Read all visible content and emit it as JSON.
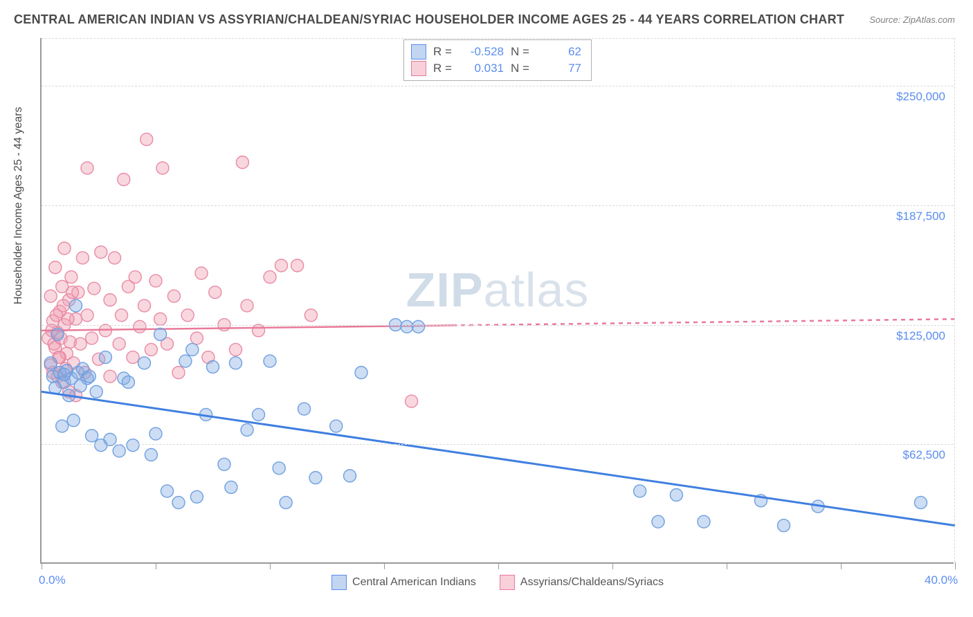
{
  "header": {
    "title": "CENTRAL AMERICAN INDIAN VS ASSYRIAN/CHALDEAN/SYRIAC HOUSEHOLDER INCOME AGES 25 - 44 YEARS CORRELATION CHART",
    "source_label": "Source:",
    "source_value": "ZipAtlas.com"
  },
  "watermark": {
    "zip": "ZIP",
    "atlas": "atlas"
  },
  "chart": {
    "type": "scatter",
    "x_axis": {
      "min": 0,
      "max": 40,
      "unit": "%",
      "ticks": [
        0,
        5,
        10,
        15,
        20,
        25,
        30,
        35,
        40
      ],
      "visible_labels": {
        "0": "0.0%",
        "40": "40.0%"
      }
    },
    "y_axis": {
      "label": "Householder Income Ages 25 - 44 years",
      "min": 0,
      "max": 275000,
      "grid_ticks": [
        62500,
        125000,
        187500,
        250000
      ],
      "tick_labels": {
        "62500": "$62,500",
        "125000": "$125,000",
        "187500": "$187,500",
        "250000": "$250,000"
      }
    },
    "grid_color": "#d8d8d8",
    "background_color": "#ffffff",
    "marker_radius": 9,
    "marker_stroke_width": 1.4,
    "series": {
      "blue": {
        "label": "Central American Indians",
        "fill": "rgba(130,170,225,0.40)",
        "stroke": "#6d9fe0",
        "R": "-0.528",
        "N": "62",
        "trend": {
          "color": "#3f7fe0",
          "width": 3,
          "y_at_xmin": 90000,
          "y_at_xmax": 20000,
          "solid_until_x": 40
        },
        "points": [
          [
            0.4,
            105000
          ],
          [
            0.5,
            98000
          ],
          [
            0.6,
            92000
          ],
          [
            0.7,
            120000
          ],
          [
            0.8,
            100000
          ],
          [
            0.9,
            72000
          ],
          [
            1.0,
            95000
          ],
          [
            1.1,
            101000
          ],
          [
            1.2,
            88000
          ],
          [
            1.3,
            97000
          ],
          [
            1.4,
            75000
          ],
          [
            1.5,
            135000
          ],
          [
            1.6,
            100000
          ],
          [
            1.8,
            102000
          ],
          [
            2.0,
            97000
          ],
          [
            2.2,
            67000
          ],
          [
            2.4,
            90000
          ],
          [
            2.6,
            62000
          ],
          [
            2.8,
            108000
          ],
          [
            3.0,
            65000
          ],
          [
            3.4,
            59000
          ],
          [
            3.6,
            97000
          ],
          [
            3.8,
            95000
          ],
          [
            4.0,
            62000
          ],
          [
            4.5,
            105000
          ],
          [
            4.8,
            57000
          ],
          [
            5.0,
            68000
          ],
          [
            5.2,
            120000
          ],
          [
            5.5,
            38000
          ],
          [
            6.0,
            32000
          ],
          [
            6.3,
            106000
          ],
          [
            6.6,
            112000
          ],
          [
            6.8,
            35000
          ],
          [
            7.2,
            78000
          ],
          [
            7.5,
            103000
          ],
          [
            8.0,
            52000
          ],
          [
            8.3,
            40000
          ],
          [
            8.5,
            105000
          ],
          [
            9.0,
            70000
          ],
          [
            9.5,
            78000
          ],
          [
            10.0,
            106000
          ],
          [
            10.4,
            50000
          ],
          [
            10.7,
            32000
          ],
          [
            11.5,
            81000
          ],
          [
            12.0,
            45000
          ],
          [
            12.9,
            72000
          ],
          [
            13.5,
            46000
          ],
          [
            14.0,
            100000
          ],
          [
            15.5,
            125000
          ],
          [
            16.0,
            124000
          ],
          [
            16.5,
            124000
          ],
          [
            26.2,
            38000
          ],
          [
            27.0,
            22000
          ],
          [
            27.8,
            36000
          ],
          [
            29.0,
            22000
          ],
          [
            31.5,
            33000
          ],
          [
            32.5,
            20000
          ],
          [
            34.0,
            30000
          ],
          [
            38.5,
            32000
          ],
          [
            1.7,
            93000
          ],
          [
            2.1,
            98000
          ],
          [
            1.0,
            99000
          ]
        ]
      },
      "pink": {
        "label": "Assyrians/Chaldeans/Syriacs",
        "fill": "rgba(240,155,175,0.40)",
        "stroke": "#e88aa5",
        "R": "0.031",
        "N": "77",
        "trend": {
          "color": "#e97a9a",
          "width": 2.5,
          "y_at_xmin": 122000,
          "y_at_xmax": 128000,
          "solid_until_x": 18
        },
        "points": [
          [
            0.3,
            118000
          ],
          [
            0.4,
            140000
          ],
          [
            0.5,
            100000
          ],
          [
            0.5,
            127000
          ],
          [
            0.6,
            113000
          ],
          [
            0.6,
            155000
          ],
          [
            0.7,
            121000
          ],
          [
            0.7,
            98000
          ],
          [
            0.8,
            132000
          ],
          [
            0.8,
            108000
          ],
          [
            0.9,
            145000
          ],
          [
            0.9,
            95000
          ],
          [
            1.0,
            125000
          ],
          [
            1.0,
            165000
          ],
          [
            1.1,
            110000
          ],
          [
            1.2,
            138000
          ],
          [
            1.2,
            90000
          ],
          [
            1.3,
            150000
          ],
          [
            1.4,
            105000
          ],
          [
            1.5,
            128000
          ],
          [
            1.5,
            88000
          ],
          [
            1.6,
            142000
          ],
          [
            1.7,
            115000
          ],
          [
            1.8,
            160000
          ],
          [
            1.9,
            100000
          ],
          [
            2.0,
            130000
          ],
          [
            2.0,
            207000
          ],
          [
            2.2,
            118000
          ],
          [
            2.3,
            144000
          ],
          [
            2.5,
            107000
          ],
          [
            2.6,
            163000
          ],
          [
            2.8,
            122000
          ],
          [
            3.0,
            98000
          ],
          [
            3.0,
            138000
          ],
          [
            3.2,
            160000
          ],
          [
            3.4,
            115000
          ],
          [
            3.5,
            130000
          ],
          [
            3.6,
            201000
          ],
          [
            3.8,
            145000
          ],
          [
            4.0,
            108000
          ],
          [
            4.1,
            150000
          ],
          [
            4.3,
            124000
          ],
          [
            4.5,
            135000
          ],
          [
            4.8,
            112000
          ],
          [
            5.0,
            148000
          ],
          [
            5.2,
            128000
          ],
          [
            4.6,
            222000
          ],
          [
            5.5,
            115000
          ],
          [
            5.8,
            140000
          ],
          [
            6.0,
            100000
          ],
          [
            5.3,
            207000
          ],
          [
            6.4,
            130000
          ],
          [
            6.8,
            118000
          ],
          [
            7.0,
            152000
          ],
          [
            7.3,
            108000
          ],
          [
            7.6,
            142000
          ],
          [
            8.0,
            125000
          ],
          [
            8.5,
            112000
          ],
          [
            8.8,
            210000
          ],
          [
            9.0,
            135000
          ],
          [
            9.5,
            122000
          ],
          [
            10.0,
            150000
          ],
          [
            10.5,
            156000
          ],
          [
            11.2,
            156000
          ],
          [
            11.8,
            130000
          ],
          [
            16.2,
            85000
          ],
          [
            0.4,
            104000
          ],
          [
            0.45,
            122000
          ],
          [
            0.55,
            115000
          ],
          [
            0.65,
            130000
          ],
          [
            0.75,
            108000
          ],
          [
            0.85,
            118000
          ],
          [
            0.95,
            135000
          ],
          [
            1.05,
            102000
          ],
          [
            1.15,
            128000
          ],
          [
            1.25,
            116000
          ],
          [
            1.35,
            142000
          ]
        ]
      }
    }
  },
  "legend_top": {
    "rows": [
      {
        "swatch": "blue",
        "R_label": "R =",
        "R": "-0.528",
        "N_label": "N =",
        "N": "62"
      },
      {
        "swatch": "pink",
        "R_label": "R =",
        "R": "0.031",
        "N_label": "N =",
        "N": "77"
      }
    ]
  },
  "legend_bottom": {
    "items": [
      {
        "swatch": "blue",
        "label": "Central American Indians"
      },
      {
        "swatch": "pink",
        "label": "Assyrians/Chaldeans/Syriacs"
      }
    ]
  }
}
